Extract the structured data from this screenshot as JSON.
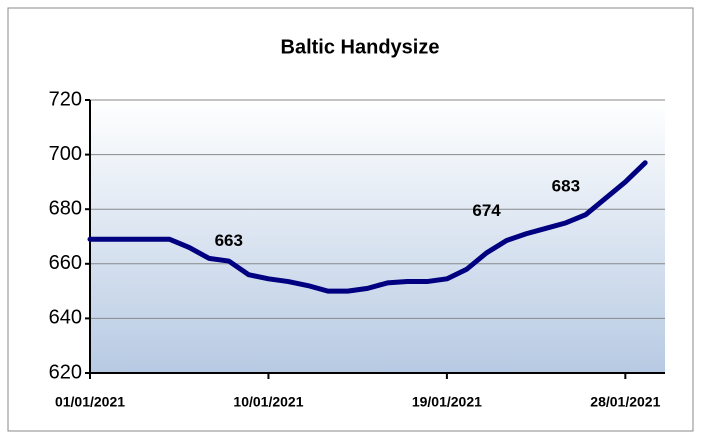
{
  "chart_data": {
    "type": "line",
    "title": "Baltic Handysize",
    "x": [
      "2021-01-01",
      "2021-01-02",
      "2021-01-03",
      "2021-01-04",
      "2021-01-05",
      "2021-01-06",
      "2021-01-07",
      "2021-01-08",
      "2021-01-09",
      "2021-01-10",
      "2021-01-11",
      "2021-01-12",
      "2021-01-13",
      "2021-01-14",
      "2021-01-15",
      "2021-01-16",
      "2021-01-17",
      "2021-01-18",
      "2021-01-19",
      "2021-01-20",
      "2021-01-21",
      "2021-01-22",
      "2021-01-23",
      "2021-01-24",
      "2021-01-25",
      "2021-01-26",
      "2021-01-27",
      "2021-01-28",
      "2021-01-29"
    ],
    "series": [
      {
        "color": "#000080",
        "values": [
          669,
          669,
          669,
          669,
          669,
          666,
          662,
          661,
          656,
          654.5,
          653.5,
          652,
          650,
          650,
          651,
          653,
          653.5,
          653.5,
          654.5,
          658,
          664,
          668.5,
          671,
          673,
          675,
          678,
          684,
          690,
          697
        ]
      }
    ],
    "xlim": [
      "2021-01-01",
      "2021-01-30"
    ],
    "xticks": [
      {
        "value": "2021-01-01",
        "label": "01/01/2021"
      },
      {
        "value": "2021-01-10",
        "label": "10/01/2021"
      },
      {
        "value": "2021-01-19",
        "label": "19/01/2021"
      },
      {
        "value": "2021-01-28",
        "label": "28/01/2021"
      }
    ],
    "ylim": [
      620,
      720
    ],
    "yticks": [
      620,
      640,
      660,
      680,
      700,
      720
    ],
    "grid": true,
    "annotations": [
      {
        "x": "2021-01-08",
        "value": 663
      },
      {
        "x": "2021-01-21",
        "value": 674
      },
      {
        "x": "2021-01-25",
        "value": 683
      }
    ]
  }
}
